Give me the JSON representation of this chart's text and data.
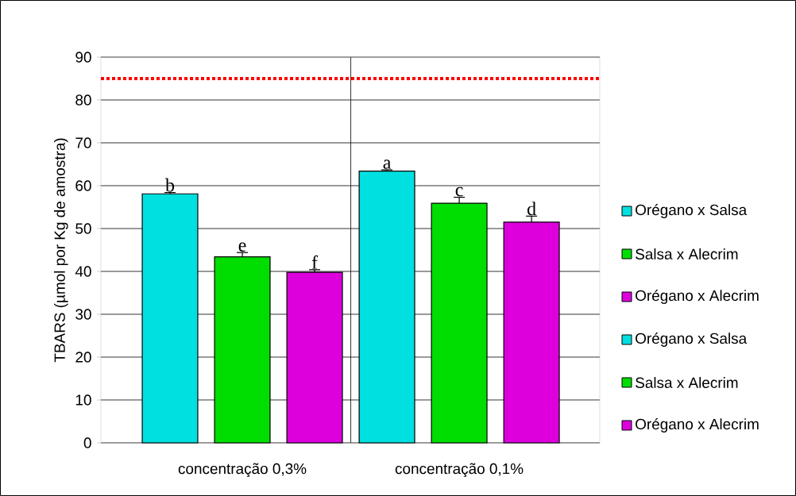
{
  "chart_data": {
    "type": "bar",
    "ylabel": "TBARS (µmol por Kg de amostra)",
    "categories": [
      "concentração 0,3%",
      "concentração 0,1%"
    ],
    "series": [
      {
        "name": "Orégano x Salsa",
        "color": "#00e0e0",
        "values": [
          58.1,
          null
        ],
        "errors": [
          0.3,
          null
        ]
      },
      {
        "name": "Salsa x Alecrim",
        "color": "#00dd00",
        "values": [
          43.4,
          null
        ],
        "errors": [
          1.0,
          null
        ]
      },
      {
        "name": "Orégano x Alecrim",
        "color": "#dd00dd",
        "values": [
          39.8,
          null
        ],
        "errors": [
          0.6,
          null
        ]
      },
      {
        "name": "Orégano x Salsa",
        "color": "#00e0e0",
        "values": [
          null,
          63.4
        ],
        "errors": [
          null,
          0.3
        ]
      },
      {
        "name": "Salsa x Alecrim",
        "color": "#00dd00",
        "values": [
          null,
          55.9
        ],
        "errors": [
          null,
          1.4
        ]
      },
      {
        "name": "Orégano x Alecrim",
        "color": "#dd00dd",
        "values": [
          null,
          51.5
        ],
        "errors": [
          null,
          1.4
        ]
      }
    ],
    "annotations": [
      "b",
      "e",
      "f",
      "a",
      "c",
      "d"
    ],
    "ref_lines": [
      {
        "axis": "y",
        "value": 85,
        "color": "#ff0000",
        "line_style": "dotted"
      }
    ],
    "ylim": [
      0,
      90
    ],
    "yticks": [
      0,
      10,
      20,
      30,
      40,
      50,
      60,
      70,
      80,
      90
    ],
    "grid": "y",
    "legend": "right"
  }
}
